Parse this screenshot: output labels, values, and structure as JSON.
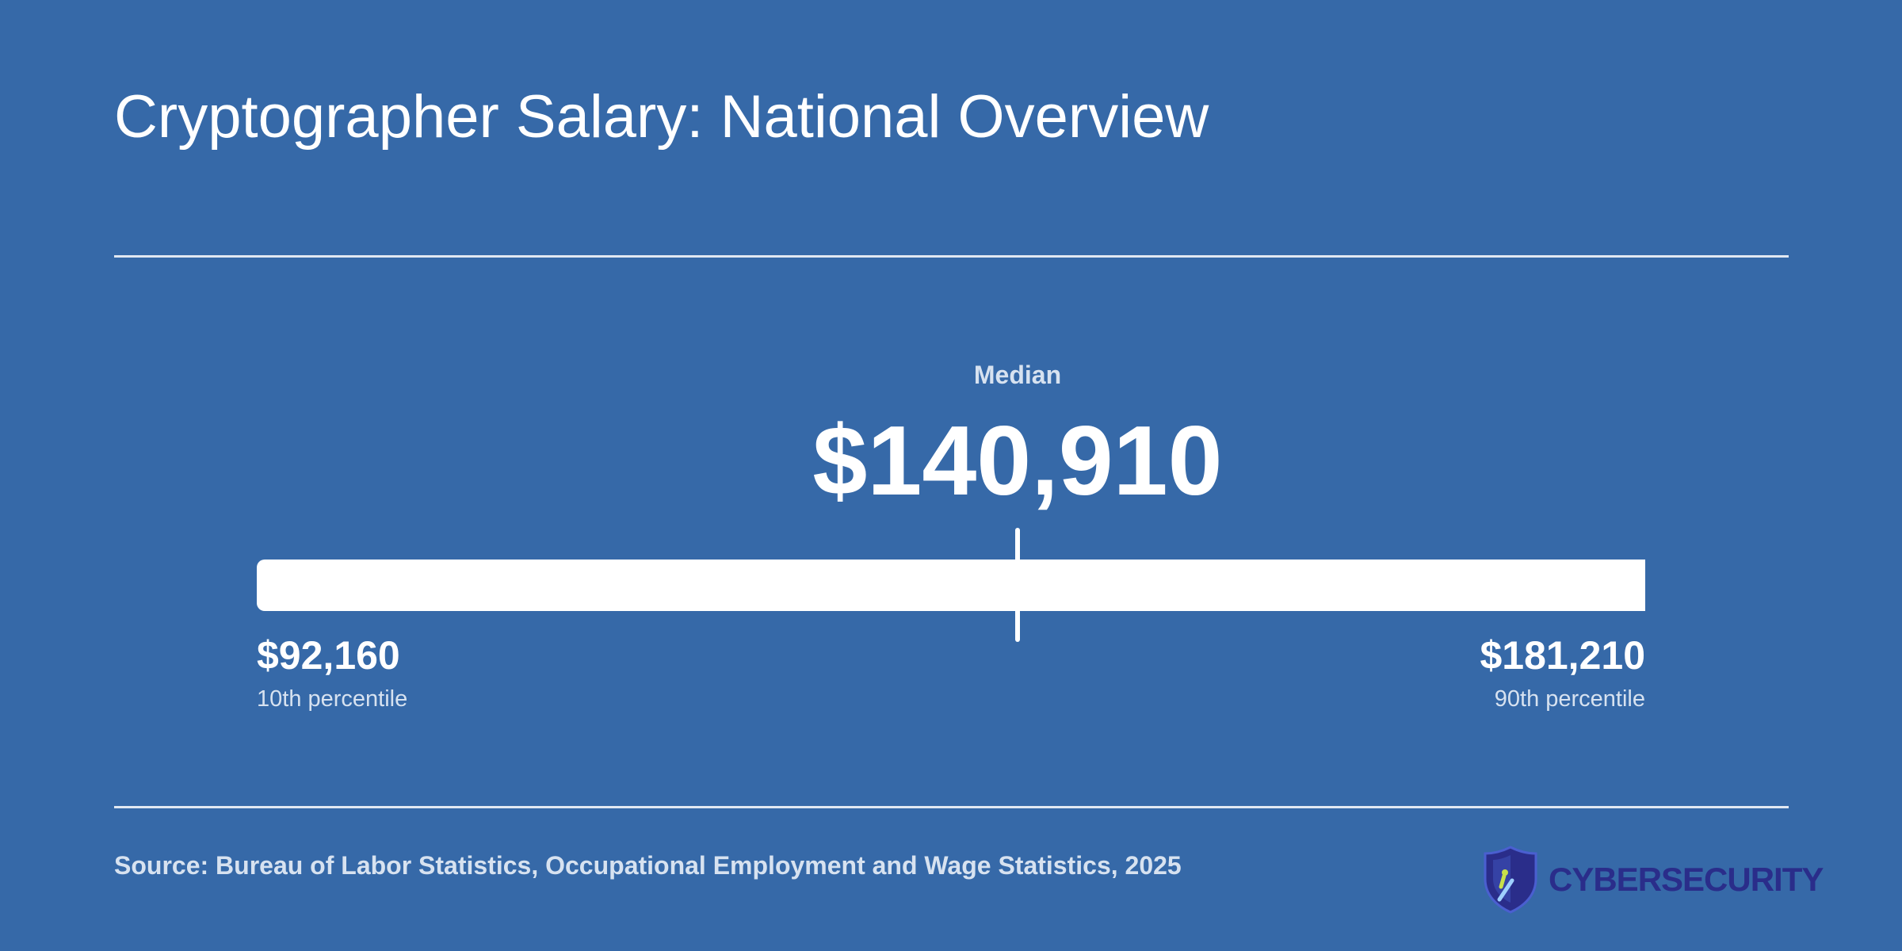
{
  "header": {
    "title": "Cryptographer Salary: National Overview"
  },
  "salary": {
    "median_label": "Median",
    "median_value": "$140,910",
    "p10_value": "$92,160",
    "p10_label": "10th percentile",
    "p90_value": "$181,210",
    "p90_label": "90th percentile"
  },
  "footer": {
    "source": "Source: Bureau of Labor Statistics, Occupational Employment and Wage Statistics, 2025",
    "logo_text": "CYBERSECURITY",
    "logo_icon": "shield-icon"
  },
  "colors": {
    "background": "#3669a8",
    "bar": "#ffffff",
    "logo": "#2a2d8a",
    "logo_accent": "#c8e04a"
  }
}
